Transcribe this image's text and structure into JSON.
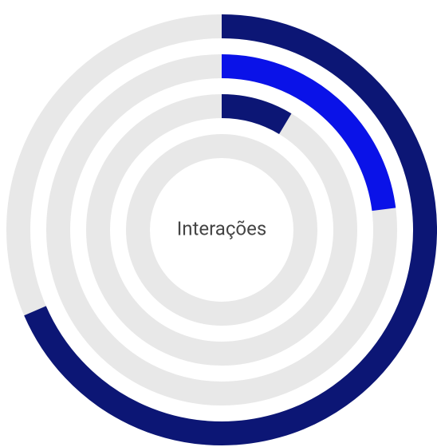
{
  "chart_data": {
    "type": "radialBar",
    "title": "Interações",
    "values": [
      68.5,
      23,
      8.6,
      0
    ],
    "colors": [
      "#0c1675",
      "#0a12e8",
      "#0c1675",
      "#0c1675"
    ],
    "track_color": "#e8e8e8",
    "ylim": [
      0,
      100
    ]
  }
}
